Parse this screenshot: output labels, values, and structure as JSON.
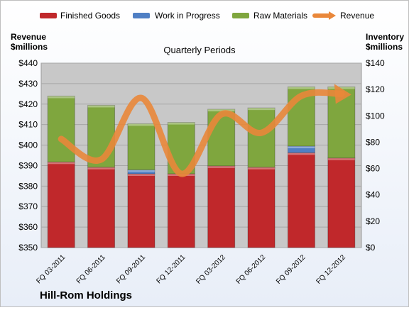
{
  "company": "Hill-Rom Holdings",
  "colors": {
    "finished_goods": "#c0282b",
    "work_in_progress": "#4f7fc4",
    "raw_materials": "#7fa63e",
    "revenue": "#e9873a",
    "plot_bg": "#c8c8c8"
  },
  "chart_data": {
    "type": "bar",
    "subtype": "stacked-bar-with-line",
    "title": "Quarterly Periods",
    "y_left_label": [
      "Revenue",
      "$millions"
    ],
    "y_right_label": [
      "Inventory",
      "$millions"
    ],
    "categories": [
      "FQ 03-2011",
      "FQ 06-2011",
      "FQ 09-2011",
      "FQ 12-2011",
      "FQ 03-2012",
      "FQ 06-2012",
      "FQ 09-2012",
      "FQ 12-2012"
    ],
    "left_ylim": [
      350,
      440
    ],
    "left_ticks": [
      "$350",
      "$360",
      "$370",
      "$380",
      "$390",
      "$400",
      "$410",
      "$420",
      "$430",
      "$440"
    ],
    "right_ylim": [
      0,
      140
    ],
    "right_ticks": [
      "$0",
      "$20",
      "$40",
      "$60",
      "$80",
      "$100",
      "$120",
      "$140"
    ],
    "legend_position": "top",
    "series": [
      {
        "name": "Finished Goods",
        "type": "bar",
        "axis": "right",
        "values": [
          65,
          61,
          56,
          56,
          62,
          61,
          72,
          68
        ]
      },
      {
        "name": "Work in Progress",
        "type": "bar",
        "axis": "right",
        "values": [
          0,
          0,
          3,
          0,
          0,
          0,
          5,
          0
        ]
      },
      {
        "name": "Raw Materials",
        "type": "bar",
        "axis": "right",
        "values": [
          50,
          47,
          35,
          39,
          43,
          45,
          45,
          54
        ]
      },
      {
        "name": "Revenue",
        "type": "line",
        "axis": "left",
        "values": [
          403,
          393,
          423,
          386,
          415,
          406,
          424,
          425
        ]
      }
    ]
  }
}
